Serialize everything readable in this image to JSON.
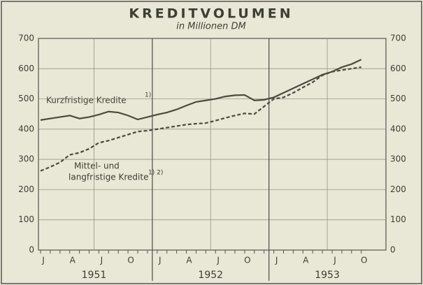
{
  "chart_data": {
    "type": "line",
    "title": "KREDITVOLUMEN",
    "subtitle": "in Millionen DM",
    "categories": [
      "J",
      null,
      null,
      "A",
      null,
      null,
      "J",
      null,
      null,
      "O",
      null,
      null,
      "J",
      null,
      null,
      "A",
      null,
      null,
      "J",
      null,
      null,
      "O",
      null,
      null,
      "J",
      null,
      null,
      "A",
      null,
      null,
      "J",
      null,
      null,
      "O"
    ],
    "year_labels": [
      "1951",
      "1952",
      "1953"
    ],
    "series": [
      {
        "name": "Kurzfristige Kredite",
        "color": "#4a4a40",
        "dashed": false,
        "values": [
          430,
          435,
          440,
          445,
          435,
          440,
          448,
          458,
          455,
          445,
          432,
          440,
          448,
          455,
          465,
          478,
          490,
          495,
          500,
          508,
          512,
          513,
          495,
          497,
          505,
          520,
          535,
          550,
          565,
          580,
          590,
          605,
          615,
          630
        ]
      },
      {
        "name": "Mittel- und langfristige Kredite",
        "color": "#4a4a40",
        "dashed": true,
        "values": [
          262,
          275,
          290,
          315,
          322,
          335,
          355,
          362,
          372,
          382,
          392,
          395,
          400,
          405,
          410,
          415,
          418,
          420,
          428,
          437,
          445,
          452,
          450,
          475,
          500,
          505,
          520,
          538,
          555,
          578,
          590,
          595,
          600,
          605
        ]
      }
    ],
    "annotations": [
      "Kurzfristige Kredite",
      "1)",
      "Mittel- und",
      "langfristige Kredite",
      "1) 2)"
    ],
    "ylim": [
      0,
      700
    ],
    "yticks": [
      0,
      100,
      200,
      300,
      400,
      500,
      600,
      700
    ],
    "grid": true
  }
}
